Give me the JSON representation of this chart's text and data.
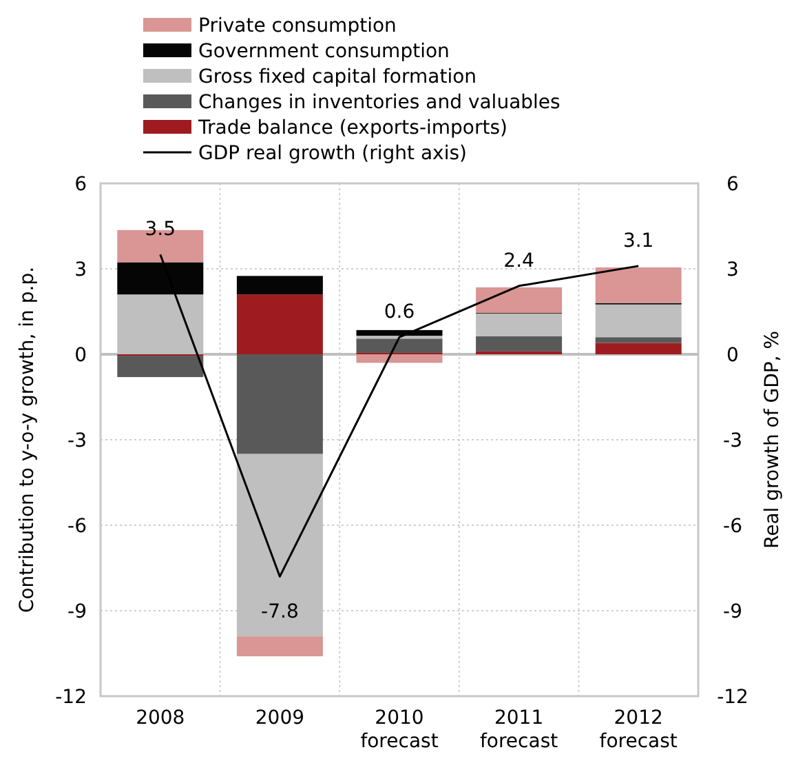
{
  "chart_data": {
    "type": "bar",
    "stacked": true,
    "categories": [
      "2008",
      "2009",
      "2010\nforecast",
      "2011\nforecast",
      "2012\nforecast"
    ],
    "ylabel": "Contribution to y-o-y growth, in p.p.",
    "y2label": "Real growth of GDP, %",
    "ylim": [
      -12,
      6
    ],
    "yticks": [
      -12,
      -9,
      -6,
      -3,
      0,
      3,
      6
    ],
    "y2lim": [
      -12,
      6
    ],
    "y2ticks": [
      -12,
      -9,
      -6,
      -3,
      0,
      3,
      6
    ],
    "grid": true,
    "legend": "top",
    "series": [
      {
        "name": "Trade balance (exports-imports)",
        "color": "#9e1b20",
        "values": [
          -0.05,
          2.1,
          0.05,
          0.1,
          0.4
        ]
      },
      {
        "name": "Changes in inventories and valuables",
        "color": "#595959",
        "values": [
          -0.75,
          -3.5,
          0.5,
          0.53,
          0.2
        ]
      },
      {
        "name": "Gross fixed capital formation",
        "color": "#bfbfbf",
        "values": [
          2.1,
          -6.4,
          0.1,
          0.8,
          1.15
        ]
      },
      {
        "name": "Government consumption",
        "color": "#050505",
        "values": [
          1.13,
          0.65,
          0.2,
          0.02,
          0.05
        ]
      },
      {
        "name": "Private consumption",
        "color": "#d99694",
        "values": [
          1.13,
          -0.7,
          -0.3,
          0.9,
          1.25
        ]
      },
      {
        "name": "GDP real growth (right axis)",
        "type": "line",
        "axis": "y2",
        "color": "#000000",
        "values": [
          3.5,
          -7.8,
          0.6,
          2.4,
          3.1
        ],
        "value_labels": [
          "3.5",
          "-7.8",
          "0.6",
          "2.4",
          "3.1"
        ],
        "marker": "none"
      }
    ]
  }
}
